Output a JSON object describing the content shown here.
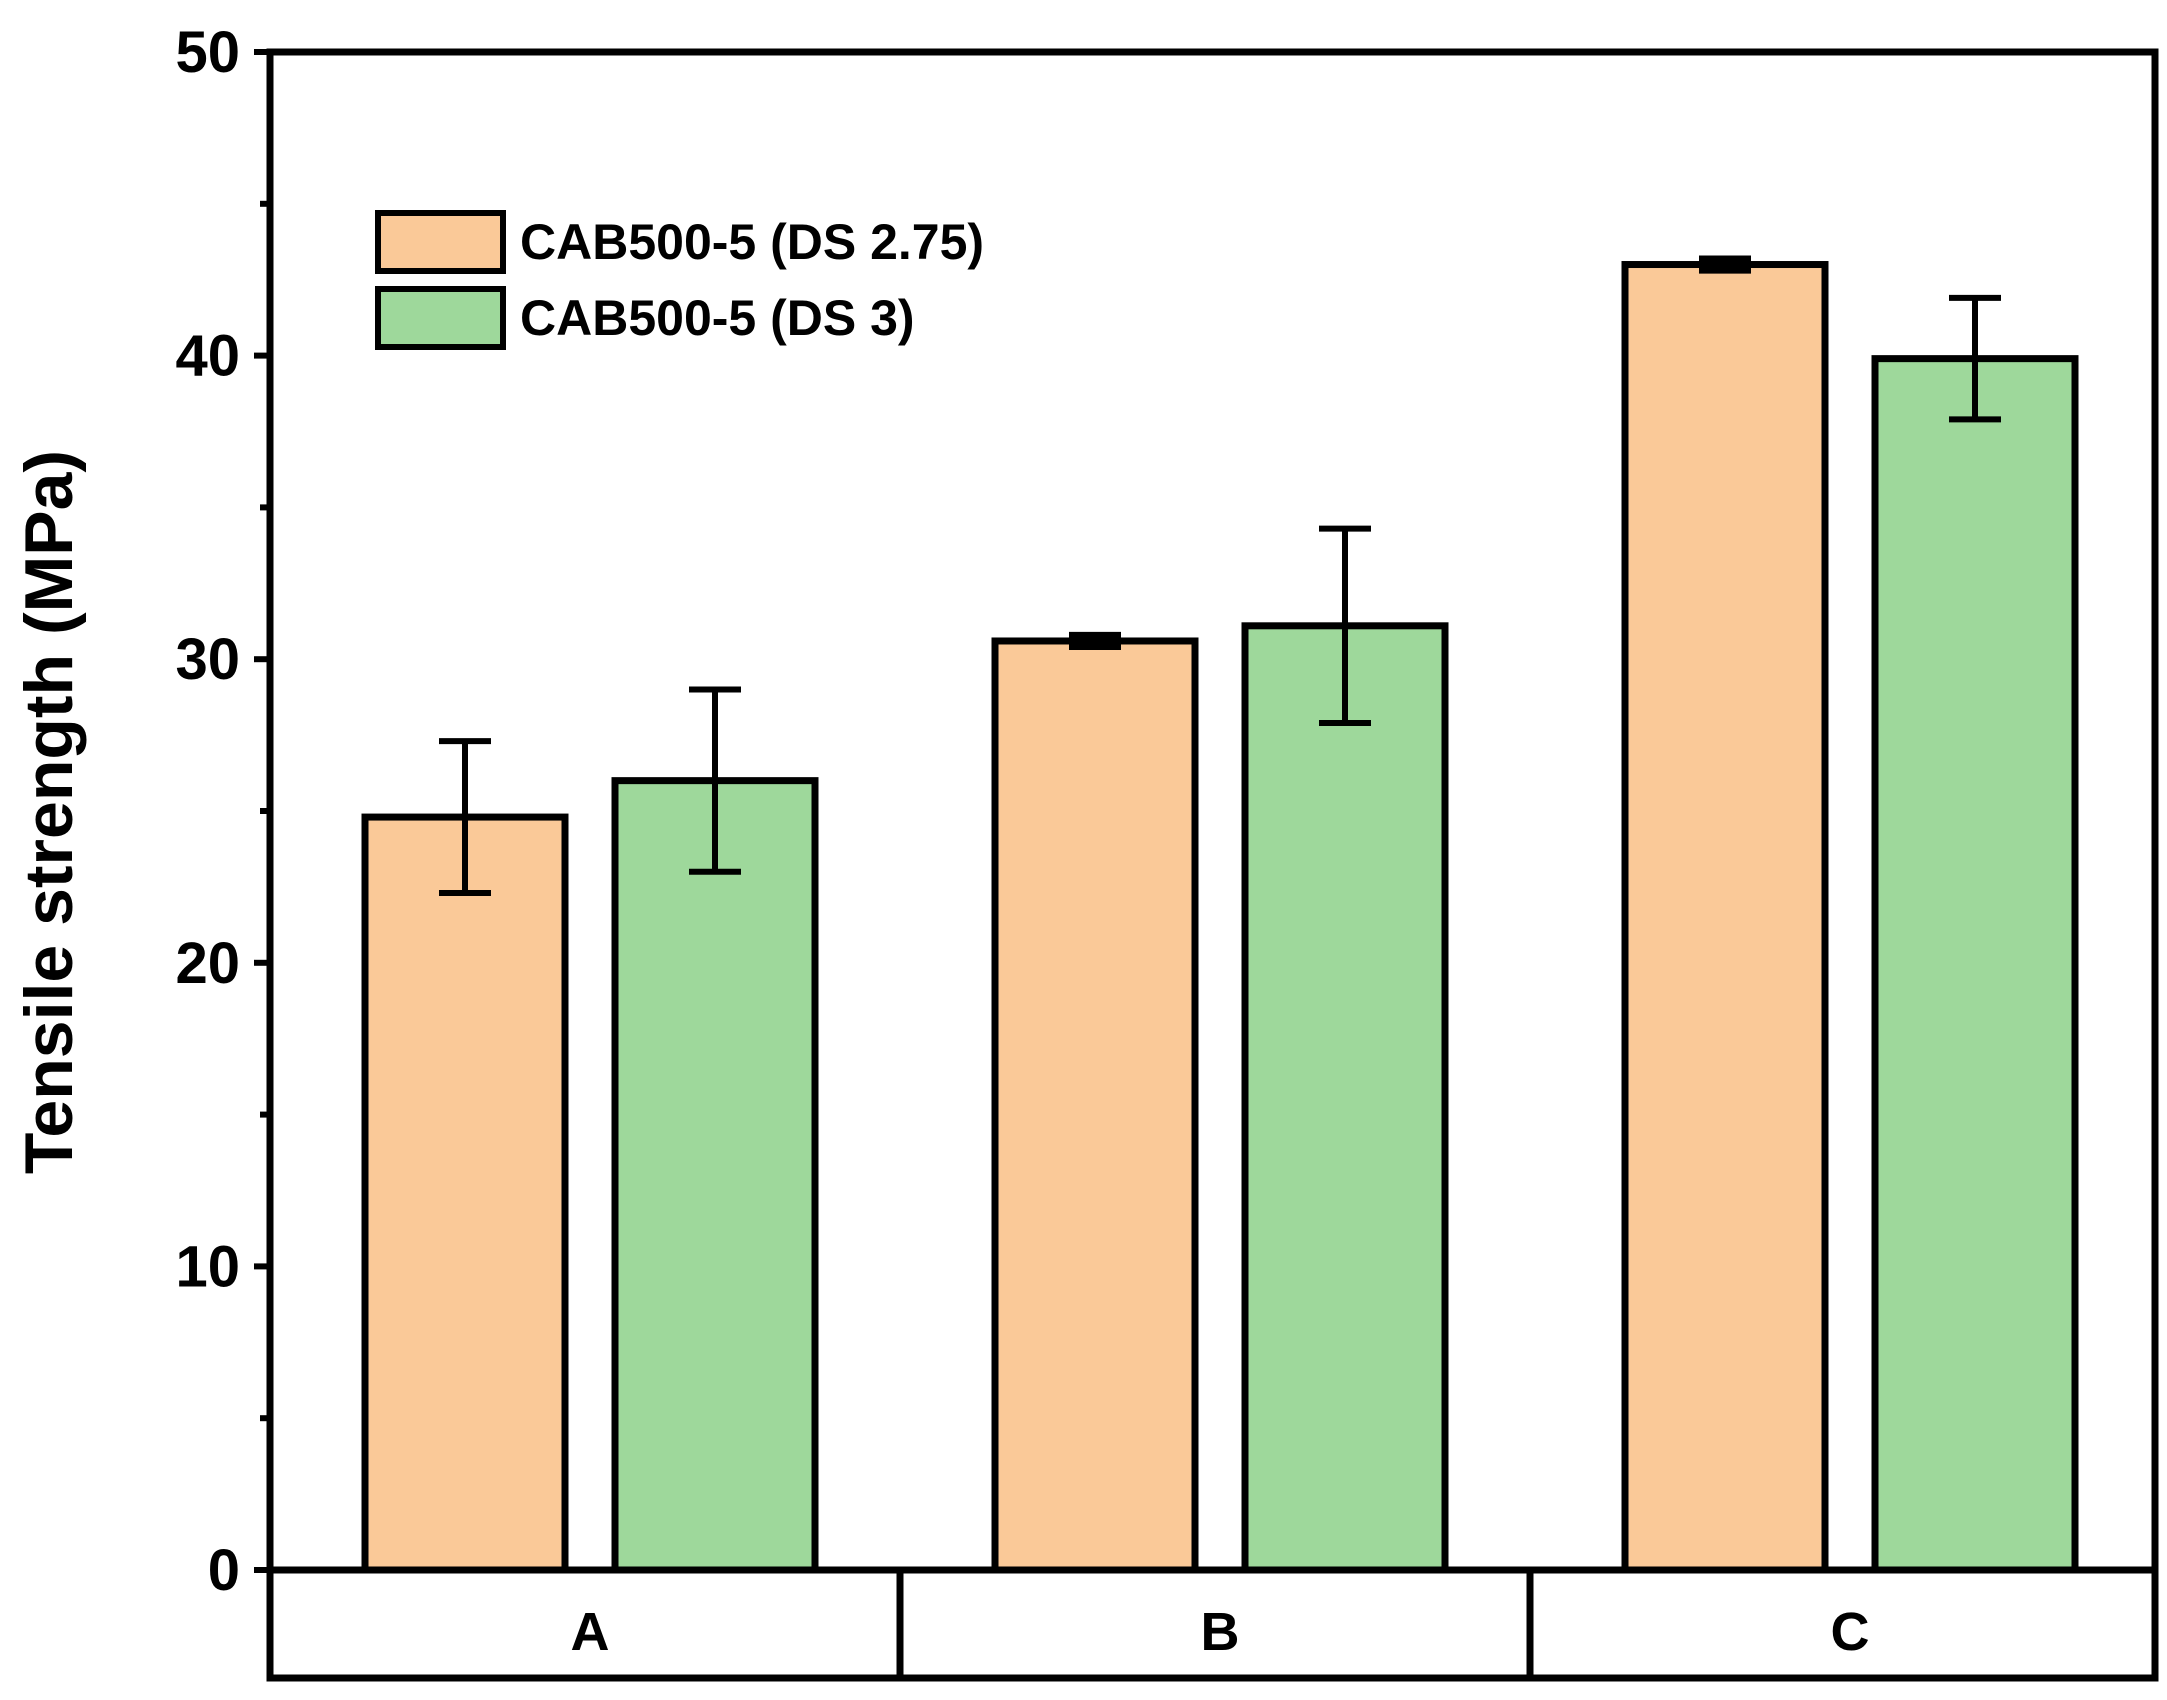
{
  "chart_data": {
    "type": "bar",
    "title": "",
    "xlabel": "",
    "ylabel": "Tensile strength (MPa)",
    "ylim": [
      0,
      50
    ],
    "yticks": [
      0,
      10,
      20,
      30,
      40,
      50
    ],
    "yticks_labels": [
      "0",
      "10",
      "20",
      "30",
      "40",
      "50"
    ],
    "grid": false,
    "legend_position": "top-left",
    "categories": [
      "A",
      "B",
      "C"
    ],
    "series": [
      {
        "name": "CAB500-5 (DS 2.75)",
        "color": "#FAC998",
        "values": [
          24.8,
          30.6,
          43.0
        ],
        "errors": [
          2.5,
          0.2,
          0.2
        ]
      },
      {
        "name": "CAB500-5 (DS 3)",
        "color": "#9ED89B",
        "values": [
          26.0,
          31.1,
          39.9
        ],
        "errors": [
          3.0,
          3.2,
          2.0
        ]
      }
    ]
  }
}
